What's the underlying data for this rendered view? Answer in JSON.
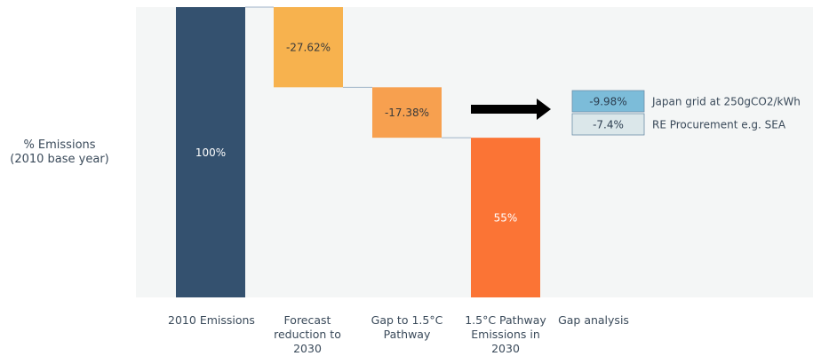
{
  "chart_data": {
    "type": "bar",
    "ylabel": "% Emissions\n(2010 base year)",
    "ylim": [
      0,
      100
    ],
    "categories": [
      "2010 Emissions",
      "Forecast reduction to 2030",
      "Gap to 1.5°C Pathway",
      "1.5°C Pathway Emissions in 2030",
      "Gap analysis"
    ],
    "bars": [
      {
        "category": "2010 Emissions",
        "start": 0,
        "end": 100,
        "label": "100%",
        "color": "#34516f"
      },
      {
        "category": "Forecast reduction to 2030",
        "start": 72.38,
        "end": 100,
        "label": "-27.62%",
        "color": "#f7b24e"
      },
      {
        "category": "Gap to 1.5°C Pathway",
        "start": 55,
        "end": 72.38,
        "label": "-17.38%",
        "color": "#f7a04f"
      },
      {
        "category": "1.5°C Pathway Emissions in 2030",
        "start": 0,
        "end": 55,
        "label": "55%",
        "color": "#fb7435"
      }
    ],
    "gap_analysis": [
      {
        "value": -9.98,
        "label": "-9.98%",
        "description": "Japan grid at 250gCO2/kWh",
        "color": "#7cbcd9"
      },
      {
        "value": -7.4,
        "label": "-7.4%",
        "description": "RE Procurement e.g. SEA",
        "color": "#dbe7ea"
      }
    ]
  },
  "colors": {
    "plot_background": "#f4f6f6",
    "connector": "#9fb3c8",
    "arrow": "#000000",
    "bar_label": "#ffffff",
    "bar_label_dark": "#3a3a3a",
    "axis_text": "#3a4a5a"
  },
  "icons": {
    "arrow": "right-arrow-icon"
  }
}
